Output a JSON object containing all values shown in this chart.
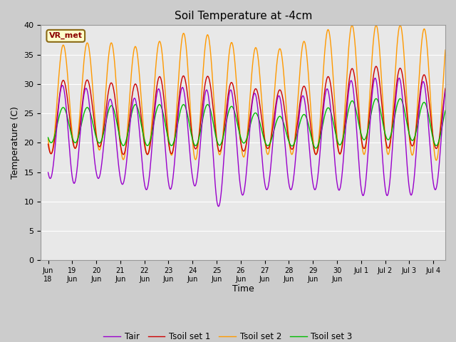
{
  "title": "Soil Temperature at -4cm",
  "xlabel": "Time",
  "ylabel": "Temperature (C)",
  "ylim": [
    0,
    40
  ],
  "yticks": [
    0,
    5,
    10,
    15,
    20,
    25,
    30,
    35,
    40
  ],
  "bg_color": "#e8e8e8",
  "fig_bg_color": "#d3d3d3",
  "colors": {
    "Tair": "#9900cc",
    "Tsoil1": "#cc0000",
    "Tsoil2": "#ff9900",
    "Tsoil3": "#00bb00"
  },
  "legend_labels": [
    "Tair",
    "Tsoil set 1",
    "Tsoil set 2",
    "Tsoil set 3"
  ],
  "annotation": "VR_met",
  "xtick_labels": [
    "Jun\n18",
    "19Jun",
    "20Jun",
    "21Jun",
    "22Jun",
    "23Jun",
    "24Jun",
    "25Jun",
    "26Jun",
    "27Jun",
    "28Jun",
    "29Jun",
    "30",
    "Jul 1",
    "Jul 2",
    "Jul 3",
    "Jul 4"
  ]
}
